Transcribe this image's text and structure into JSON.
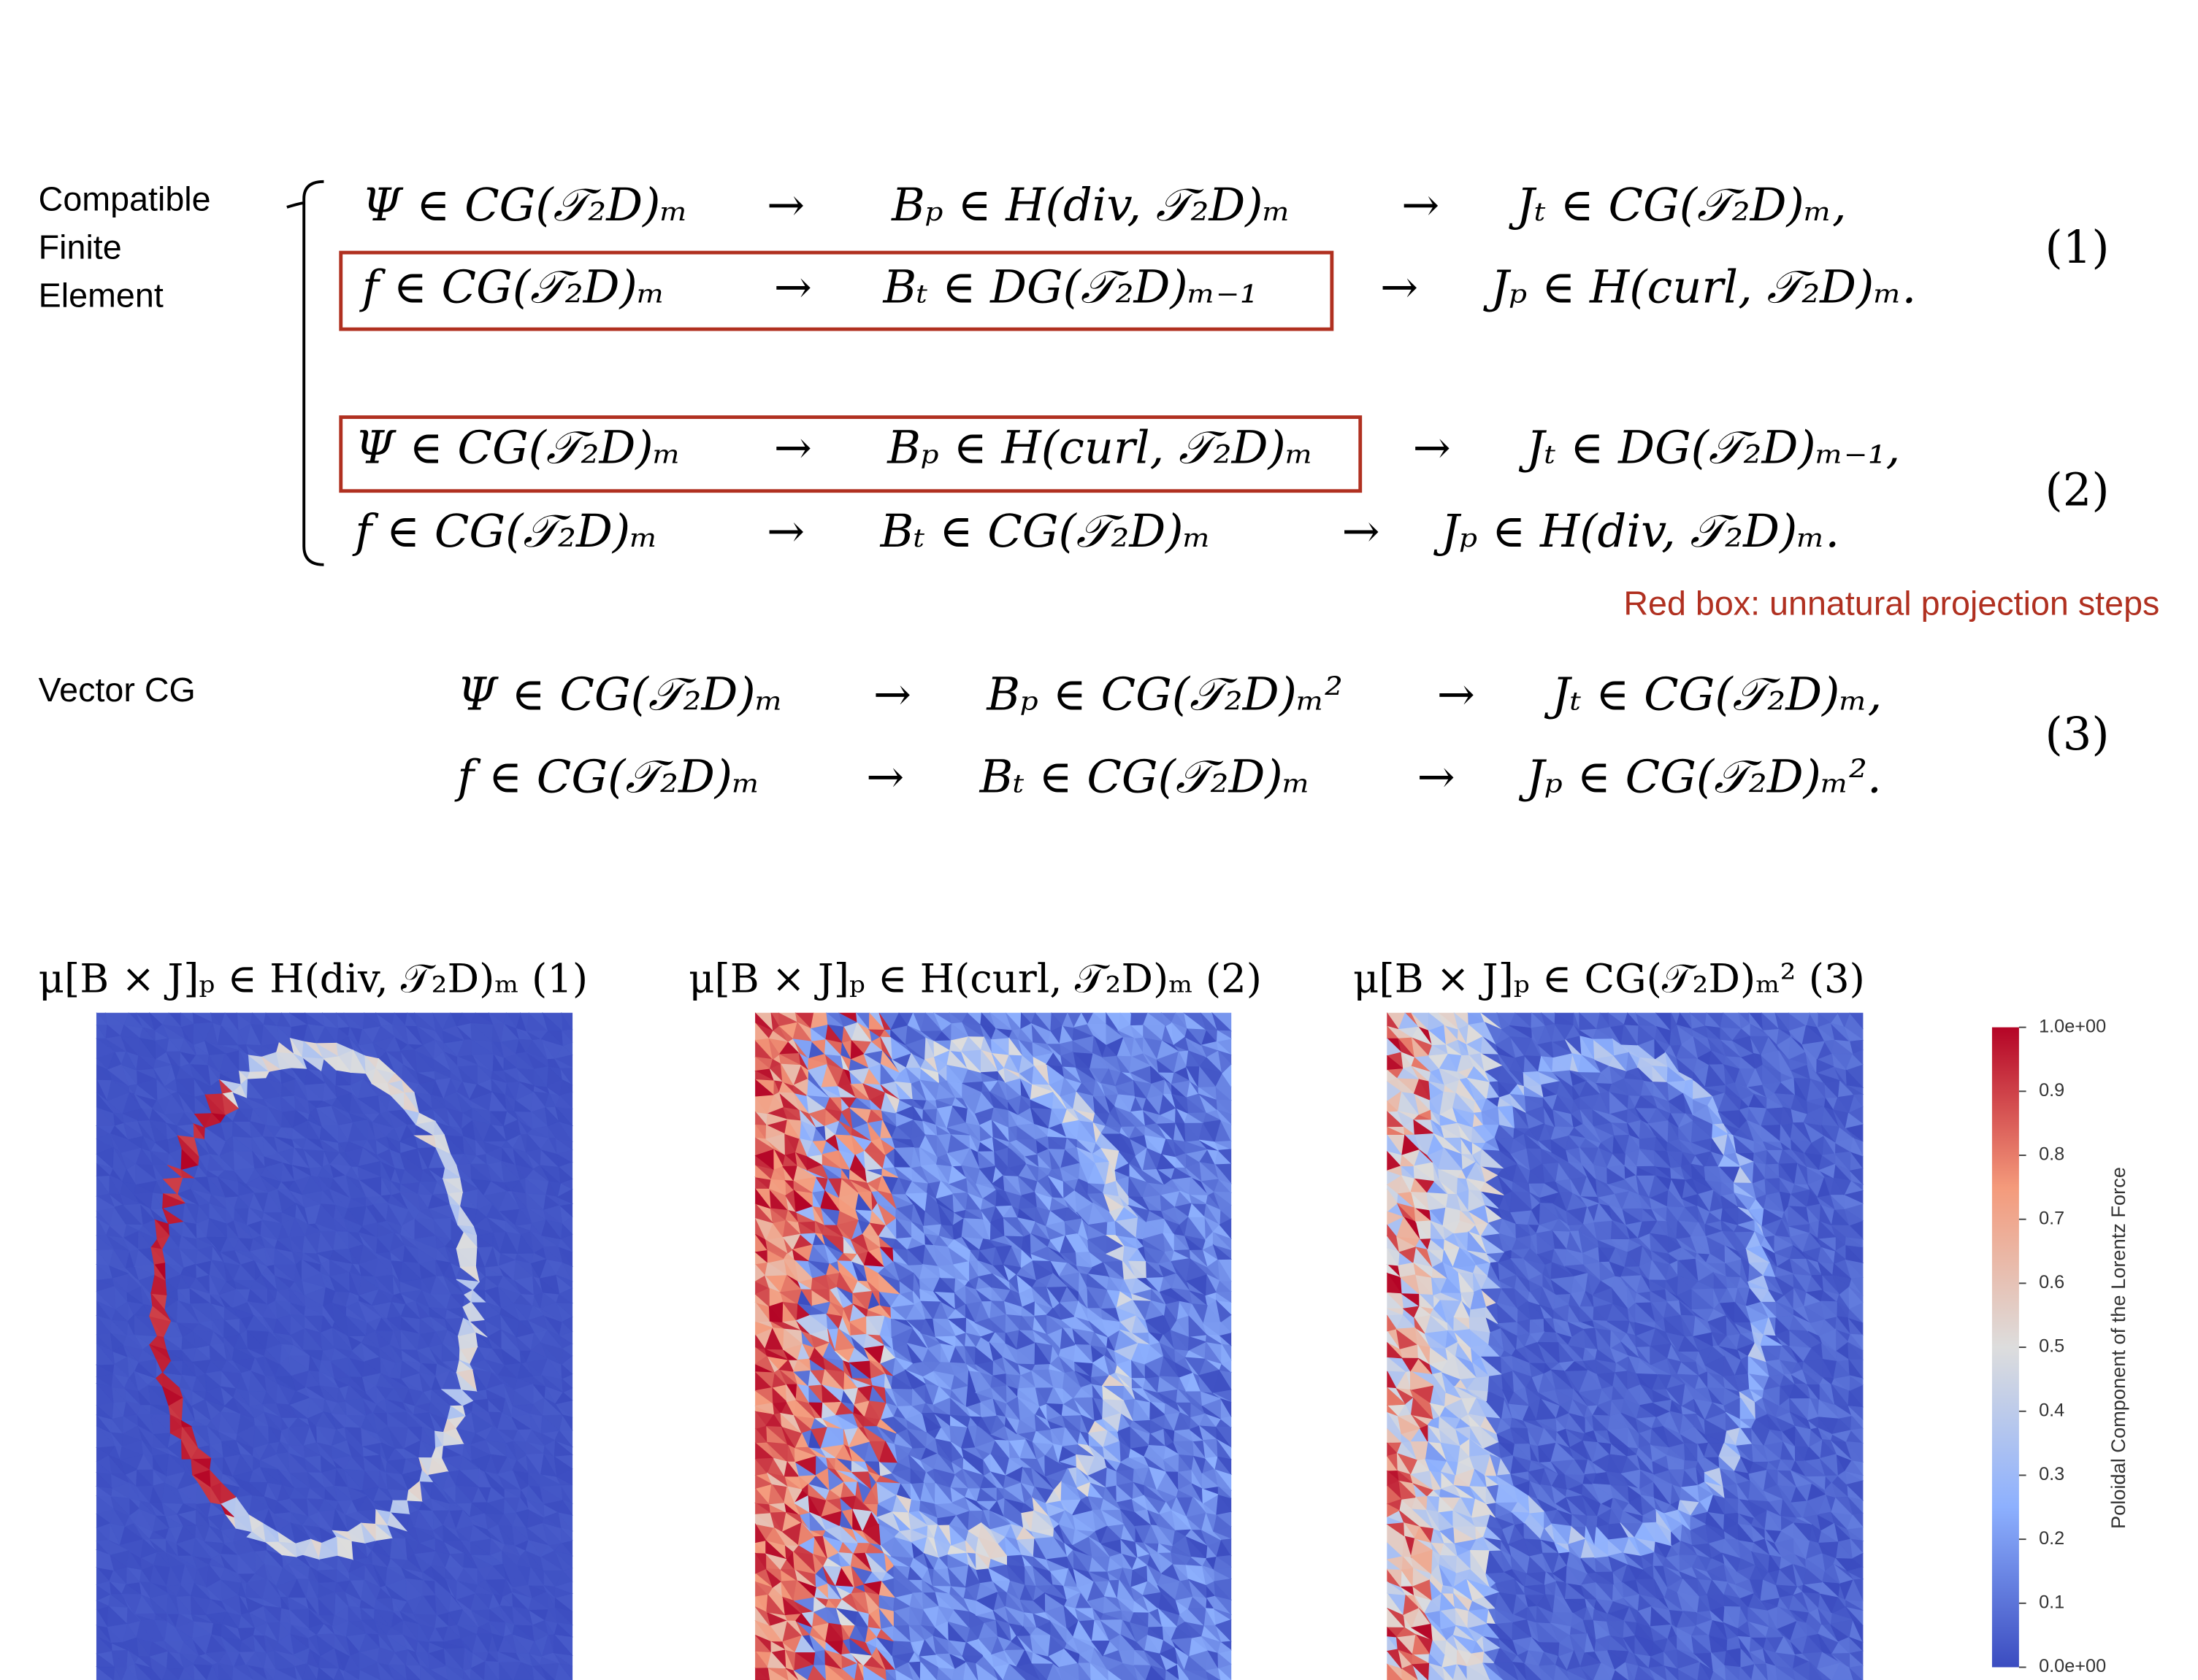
{
  "left_labels": [
    [
      "Compatible",
      "Finite",
      "Element"
    ],
    [
      "Vector CG"
    ]
  ],
  "equations": [
    {
      "number": "(1)",
      "rows": [
        [
          "Ψ ∈ CG(𝒯₂D)ₘ",
          "→",
          "Bₚ ∈ H(div, 𝒯₂D)ₘ",
          "→",
          "Jₜ ∈ CG(𝒯₂D)ₘ,"
        ],
        [
          "f ∈ CG(𝒯₂D)ₘ",
          "→",
          "Bₜ ∈ DG(𝒯₂D)ₘ₋₁",
          "→",
          "Jₚ ∈ H(curl, 𝒯₂D)ₘ."
        ]
      ]
    },
    {
      "number": "(2)",
      "rows": [
        [
          "Ψ ∈ CG(𝒯₂D)ₘ",
          "→",
          "Bₚ ∈ H(curl, 𝒯₂D)ₘ",
          "→",
          "Jₜ ∈ DG(𝒯₂D)ₘ₋₁,"
        ],
        [
          "f ∈ CG(𝒯₂D)ₘ",
          "→",
          "Bₜ ∈ CG(𝒯₂D)ₘ",
          "→",
          "Jₚ ∈ H(div, 𝒯₂D)ₘ."
        ]
      ]
    },
    {
      "number": "(3)",
      "rows": [
        [
          "Ψ ∈ CG(𝒯₂D)ₘ",
          "→",
          "Bₚ ∈ CG(𝒯₂D)ₘ²",
          "→",
          "Jₜ ∈ CG(𝒯₂D)ₘ,"
        ],
        [
          "f ∈ CG(𝒯₂D)ₘ",
          "→",
          "Bₜ ∈ CG(𝒯₂D)ₘ",
          "→",
          "Jₚ ∈ CG(𝒯₂D)ₘ²."
        ]
      ]
    }
  ],
  "note": "Red box: unnatural projection steps",
  "panels": [
    {
      "title": "μ[B × J]ₚ ∈ H(div, 𝒯₂D)ₘ (1)"
    },
    {
      "title": "μ[B × J]ₚ ∈ H(curl, 𝒯₂D)ₘ (2)"
    },
    {
      "title": "μ[B × J]ₚ ∈ CG(𝒯₂D)ₘ² (3)"
    }
  ],
  "colorbar": {
    "label": "Poloidal Component of the Lorentz Force",
    "lim": [
      0,
      1
    ],
    "ticks": [
      {
        "value": 1,
        "label": "1.0e+00"
      },
      0.9,
      0.8,
      0.7,
      0.6,
      0.5,
      0.4,
      0.3,
      0.2,
      0.1,
      {
        "value": 0,
        "label": "0.0e+00"
      }
    ]
  }
}
